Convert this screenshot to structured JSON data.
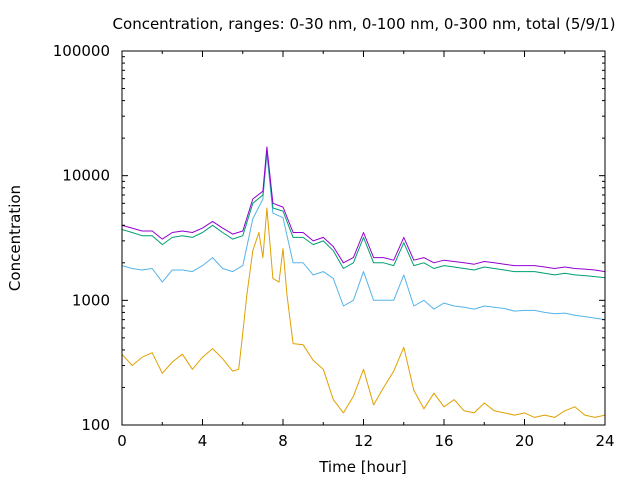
{
  "chart_data": {
    "type": "line",
    "title": "Concentration, ranges: 0-30 nm, 0-100 nm, 0-300 nm, total (5/9/1)",
    "xlabel": "Time [hour]",
    "ylabel": "Concentration",
    "xlim": [
      0,
      24
    ],
    "ylim": [
      100,
      100000
    ],
    "yscale": "log",
    "grid": false,
    "legend": "none",
    "x_ticks": [
      0,
      4,
      8,
      12,
      16,
      20,
      24
    ],
    "x_tick_labels": [
      "0",
      "4",
      "8",
      "12",
      "16",
      "20",
      "24"
    ],
    "y_ticks": [
      100,
      1000,
      10000,
      100000
    ],
    "y_tick_labels": [
      "100",
      "1000",
      "10000",
      "100000"
    ],
    "series": [
      {
        "color": "#e0a000",
        "x": [
          0,
          0.5,
          1,
          1.5,
          2,
          2.5,
          3,
          3.5,
          4,
          4.5,
          5,
          5.5,
          5.8,
          6,
          6.2,
          6.5,
          6.8,
          7,
          7.2,
          7.5,
          7.8,
          8,
          8.2,
          8.5,
          9,
          9.5,
          10,
          10.5,
          11,
          11.5,
          12,
          12.5,
          13,
          13.5,
          14,
          14.5,
          15,
          15.5,
          16,
          16.5,
          17,
          17.5,
          18,
          18.5,
          19,
          19.5,
          20,
          20.5,
          21,
          21.5,
          22,
          22.5,
          23,
          23.5,
          24
        ],
        "y": [
          370,
          300,
          350,
          380,
          260,
          320,
          370,
          280,
          350,
          410,
          340,
          270,
          280,
          550,
          1100,
          2500,
          3500,
          2200,
          5500,
          1500,
          1400,
          2600,
          1100,
          450,
          440,
          330,
          280,
          160,
          125,
          170,
          280,
          145,
          200,
          270,
          420,
          190,
          135,
          180,
          140,
          160,
          130,
          125,
          150,
          130,
          125,
          120,
          125,
          115,
          120,
          115,
          130,
          140,
          120,
          115,
          120
        ]
      },
      {
        "color": "#56b4e9",
        "x": [
          0,
          0.5,
          1,
          1.5,
          2,
          2.5,
          3,
          3.5,
          4,
          4.5,
          5,
          5.5,
          6,
          6.5,
          7,
          7.2,
          7.5,
          8,
          8.5,
          9,
          9.5,
          10,
          10.5,
          11,
          11.5,
          12,
          12.5,
          13,
          13.5,
          14,
          14.5,
          15,
          15.5,
          16,
          16.5,
          17,
          17.5,
          18,
          18.5,
          19,
          19.5,
          20,
          20.5,
          21,
          21.5,
          22,
          22.5,
          23,
          23.5,
          24
        ],
        "y": [
          1900,
          1800,
          1750,
          1800,
          1400,
          1750,
          1750,
          1700,
          1900,
          2200,
          1800,
          1700,
          1900,
          4500,
          6500,
          15000,
          5000,
          4600,
          2000,
          2000,
          1600,
          1700,
          1500,
          900,
          1000,
          1700,
          1000,
          1000,
          1000,
          1600,
          900,
          1000,
          850,
          950,
          900,
          880,
          850,
          900,
          880,
          860,
          820,
          830,
          830,
          800,
          780,
          790,
          760,
          740,
          720,
          700
        ]
      },
      {
        "color": "#009e73",
        "x": [
          0,
          0.5,
          1,
          1.5,
          2,
          2.5,
          3,
          3.5,
          4,
          4.5,
          5,
          5.5,
          6,
          6.5,
          7,
          7.2,
          7.5,
          8,
          8.5,
          9,
          9.5,
          10,
          10.5,
          11,
          11.5,
          12,
          12.5,
          13,
          13.5,
          14,
          14.5,
          15,
          15.5,
          16,
          16.5,
          17,
          17.5,
          18,
          18.5,
          19,
          19.5,
          20,
          20.5,
          21,
          21.5,
          22,
          22.5,
          23,
          23.5,
          24
        ],
        "y": [
          3700,
          3500,
          3300,
          3300,
          2800,
          3200,
          3300,
          3200,
          3500,
          4000,
          3500,
          3100,
          3300,
          6000,
          7000,
          16000,
          5500,
          5200,
          3200,
          3200,
          2800,
          3000,
          2500,
          1800,
          2000,
          3200,
          2000,
          2000,
          1900,
          2900,
          1900,
          2000,
          1800,
          1900,
          1850,
          1800,
          1750,
          1850,
          1800,
          1750,
          1700,
          1700,
          1700,
          1650,
          1600,
          1650,
          1600,
          1580,
          1550,
          1520
        ]
      },
      {
        "color": "#9400d3",
        "x": [
          0,
          0.5,
          1,
          1.5,
          2,
          2.5,
          3,
          3.5,
          4,
          4.5,
          5,
          5.5,
          6,
          6.5,
          7,
          7.2,
          7.5,
          8,
          8.5,
          9,
          9.5,
          10,
          10.5,
          11,
          11.5,
          12,
          12.5,
          13,
          13.5,
          14,
          14.5,
          15,
          15.5,
          16,
          16.5,
          17,
          17.5,
          18,
          18.5,
          19,
          19.5,
          20,
          20.5,
          21,
          21.5,
          22,
          22.5,
          23,
          23.5,
          24
        ],
        "y": [
          4000,
          3800,
          3600,
          3600,
          3100,
          3500,
          3600,
          3500,
          3800,
          4300,
          3800,
          3400,
          3600,
          6500,
          7500,
          17000,
          6000,
          5600,
          3500,
          3500,
          3000,
          3200,
          2700,
          2000,
          2200,
          3500,
          2200,
          2200,
          2100,
          3200,
          2100,
          2200,
          2000,
          2100,
          2050,
          2000,
          1950,
          2050,
          2000,
          1950,
          1900,
          1900,
          1900,
          1850,
          1800,
          1850,
          1800,
          1780,
          1750,
          1700
        ]
      }
    ]
  }
}
